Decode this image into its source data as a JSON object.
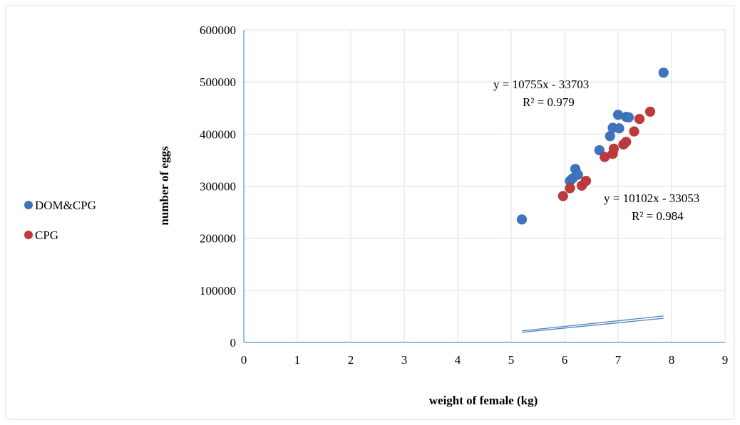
{
  "chart_data": {
    "type": "scatter",
    "title": "",
    "xlabel": "weight  of female (kg)",
    "ylabel": "number of eggs",
    "xlim": [
      0,
      9
    ],
    "ylim": [
      0,
      600000
    ],
    "x_ticks": [
      0,
      1,
      2,
      3,
      4,
      5,
      6,
      7,
      8,
      9
    ],
    "y_ticks": [
      0,
      100000,
      200000,
      300000,
      400000,
      500000,
      600000
    ],
    "grid": true,
    "legend_position": "left",
    "series": [
      {
        "name": "DOM&CPG",
        "color": "#3d74bd",
        "marker": "circle",
        "points": [
          [
            5.2,
            236000
          ],
          [
            6.1,
            310000
          ],
          [
            6.15,
            315000
          ],
          [
            6.2,
            333000
          ],
          [
            6.25,
            322000
          ],
          [
            6.65,
            369000
          ],
          [
            6.85,
            396000
          ],
          [
            6.9,
            412000
          ],
          [
            7.0,
            437000
          ],
          [
            7.02,
            411000
          ],
          [
            7.15,
            433000
          ],
          [
            7.2,
            432000
          ],
          [
            7.85,
            518000
          ]
        ],
        "trendline": {
          "equation": "y = 10755x - 33703",
          "r2": "R² = 0.979",
          "x_range": [
            5.2,
            7.85
          ]
        }
      },
      {
        "name": "CPG",
        "color": "#c0393b",
        "marker": "circle",
        "points": [
          [
            5.97,
            281000
          ],
          [
            6.1,
            296000
          ],
          [
            6.32,
            301000
          ],
          [
            6.4,
            310000
          ],
          [
            6.75,
            356000
          ],
          [
            6.9,
            362000
          ],
          [
            6.92,
            372000
          ],
          [
            7.1,
            380000
          ],
          [
            7.15,
            385000
          ],
          [
            7.3,
            405000
          ],
          [
            7.4,
            429000
          ],
          [
            7.6,
            443000
          ]
        ],
        "trendline": {
          "equation": "y = 10102x - 33053",
          "r2": "R² = 0.984",
          "x_range": [
            5.2,
            7.85
          ]
        }
      }
    ]
  }
}
